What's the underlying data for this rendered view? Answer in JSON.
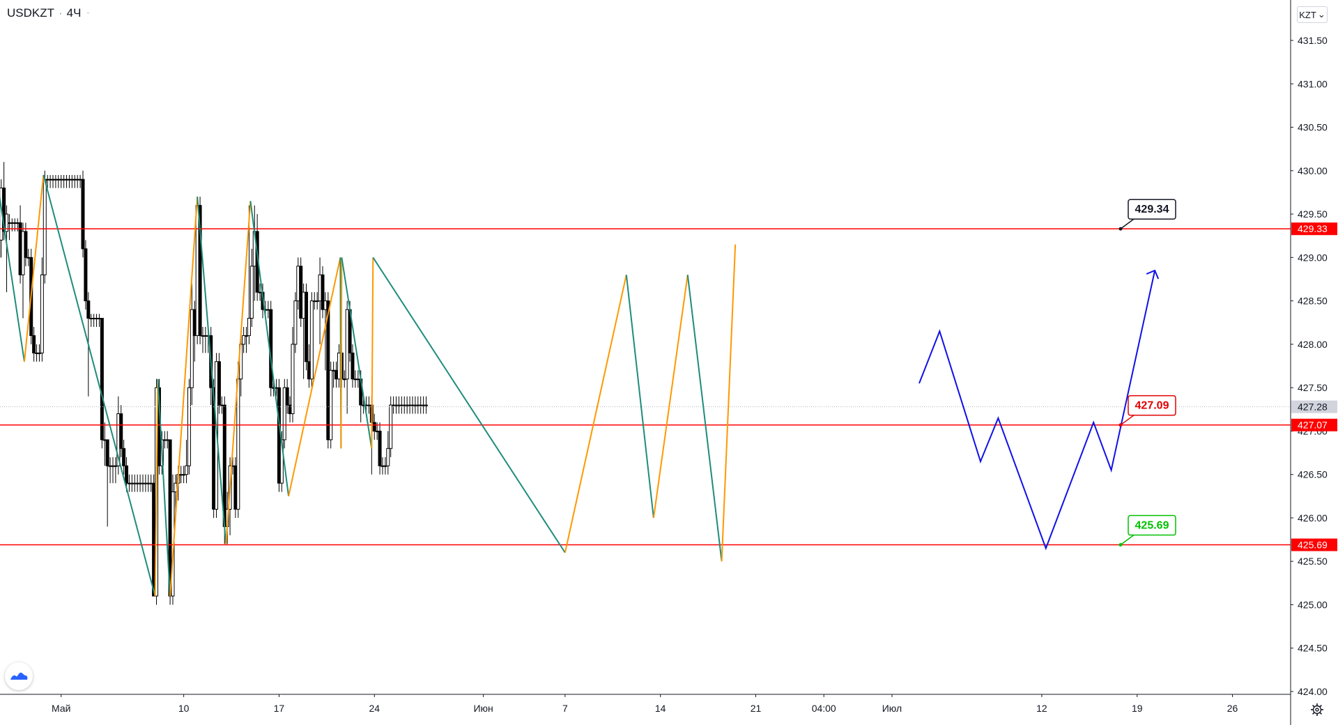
{
  "header": {
    "symbol": "USDKZT",
    "separator": "·",
    "interval": "4Ч",
    "more_glyph": "◦",
    "currency": "KZT",
    "currency_chevron": "⌄"
  },
  "icons": {
    "logo": "tradingview-logo-icon",
    "settings": "gear-icon",
    "currency_dropdown": "chevron-down-icon"
  },
  "colors": {
    "bull_candle": "#ffffff",
    "bear_candle": "#000000",
    "level_line": "#ff0000",
    "zigzag_down": "#1e8c7a",
    "zigzag_up": "#ff9800",
    "forecast": "#1010e8",
    "label_black_text": "#131722",
    "label_red_text": "#e00000",
    "label_green_text": "#00c000",
    "current_price_bg": "#d1d4dc"
  },
  "chart_data": {
    "type": "candlestick",
    "ylim": [
      424.0,
      431.75
    ],
    "y_ticks": [
      "424.00",
      "424.50",
      "425.00",
      "425.50",
      "426.00",
      "426.50",
      "427.00",
      "427.50",
      "428.00",
      "428.50",
      "429.00",
      "429.50",
      "430.00",
      "430.50",
      "431.00",
      "431.50"
    ],
    "x_ticks": [
      {
        "label": "Май",
        "x": 0
      },
      {
        "label": "10",
        "x": 9
      },
      {
        "label": "17",
        "x": 16
      },
      {
        "label": "24",
        "x": 23
      },
      {
        "label": "Июн",
        "x": 31
      },
      {
        "label": "7",
        "x": 37
      },
      {
        "label": "14",
        "x": 44
      },
      {
        "label": "21",
        "x": 51
      },
      {
        "label": "04:00",
        "x": 56
      },
      {
        "label": "Июл",
        "x": 61
      },
      {
        "label": "12",
        "x": 72
      },
      {
        "label": "19",
        "x": 79
      },
      {
        "label": "26",
        "x": 86
      }
    ],
    "x_domain_days": [
      -5,
      96
    ],
    "levels": [
      {
        "price": 429.33,
        "axis_label": "429.33",
        "callout": "429.34",
        "callout_style": "black"
      },
      {
        "price": 427.07,
        "axis_label": "427.07",
        "callout": "427.09",
        "callout_style": "red"
      },
      {
        "price": 425.69,
        "axis_label": "425.69",
        "callout": "425.69",
        "callout_style": "green"
      }
    ],
    "last_price": {
      "value": 427.28,
      "label": "427.28"
    },
    "candles": [
      [
        -5,
        429.7,
        429.3,
        429.9,
        429.2
      ],
      [
        -4.8,
        429.3,
        429.0,
        429.6,
        428.9
      ],
      [
        -4.6,
        429.0,
        429.2,
        429.3,
        428.7
      ],
      [
        -4.4,
        429.2,
        429.8,
        429.9,
        429.0
      ],
      [
        -4.2,
        429.8,
        429.3,
        430.1,
        429.2
      ],
      [
        -4,
        429.3,
        429.5,
        429.6,
        428.6
      ],
      [
        -3.8,
        429.4,
        429.4,
        429.5,
        429.2
      ],
      [
        -3.6,
        429.4,
        429.4,
        429.45,
        429.3
      ],
      [
        -3.4,
        429.4,
        429.4,
        429.45,
        429.3
      ],
      [
        -3.2,
        429.4,
        429.4,
        429.45,
        429.3
      ],
      [
        -3,
        429.4,
        428.8,
        429.6,
        428.7
      ],
      [
        -2.8,
        428.8,
        429.3,
        429.4,
        428.3
      ],
      [
        -2.6,
        429.3,
        429.0,
        429.4,
        428.9
      ],
      [
        -2.4,
        429.0,
        429.0,
        429.1,
        428.9
      ],
      [
        -2.2,
        429.0,
        428.1,
        429.1,
        428.0
      ],
      [
        -2,
        428.1,
        427.9,
        428.2,
        427.8
      ],
      [
        -1.8,
        427.9,
        427.9,
        428.0,
        427.8
      ],
      [
        -1.6,
        427.9,
        427.9,
        428.0,
        427.8
      ],
      [
        -1.4,
        427.9,
        428.8,
        429.0,
        427.8
      ],
      [
        -1.2,
        428.8,
        429.9,
        430.0,
        428.7
      ],
      [
        -1,
        429.9,
        429.9,
        429.95,
        429.8
      ],
      [
        -0.8,
        429.9,
        429.9,
        429.95,
        429.8
      ],
      [
        -0.6,
        429.9,
        429.9,
        429.95,
        429.8
      ],
      [
        -0.4,
        429.9,
        429.9,
        429.95,
        429.8
      ],
      [
        -0.2,
        429.9,
        429.9,
        429.95,
        429.8
      ],
      [
        0,
        429.9,
        429.9,
        429.95,
        429.8
      ],
      [
        0.2,
        429.9,
        429.9,
        429.95,
        429.8
      ],
      [
        0.4,
        429.9,
        429.9,
        429.95,
        429.8
      ],
      [
        0.6,
        429.9,
        429.9,
        429.95,
        429.8
      ],
      [
        0.8,
        429.9,
        429.9,
        429.95,
        429.8
      ],
      [
        1,
        429.9,
        429.9,
        429.95,
        429.8
      ],
      [
        1.2,
        429.9,
        429.9,
        429.95,
        429.8
      ],
      [
        1.4,
        429.9,
        429.9,
        429.95,
        429.8
      ],
      [
        1.6,
        429.9,
        429.1,
        430.0,
        429.0
      ],
      [
        1.8,
        429.1,
        428.5,
        429.2,
        428.4
      ],
      [
        2,
        428.5,
        428.3,
        428.6,
        427.4
      ],
      [
        2.2,
        428.3,
        428.3,
        428.35,
        428.2
      ],
      [
        2.4,
        428.3,
        428.3,
        428.35,
        428.2
      ],
      [
        2.6,
        428.3,
        428.3,
        428.35,
        428.2
      ],
      [
        2.8,
        428.3,
        428.3,
        428.35,
        428.2
      ],
      [
        3,
        428.3,
        426.9,
        428.3,
        426.8
      ],
      [
        3.2,
        426.9,
        426.9,
        427.1,
        426.6
      ],
      [
        3.4,
        426.9,
        426.6,
        426.9,
        425.9
      ],
      [
        3.6,
        426.6,
        426.6,
        426.7,
        426.4
      ],
      [
        3.8,
        426.6,
        426.6,
        426.7,
        426.4
      ],
      [
        4,
        426.6,
        426.6,
        426.7,
        426.4
      ],
      [
        4.2,
        426.6,
        427.2,
        427.4,
        426.5
      ],
      [
        4.4,
        427.2,
        426.8,
        427.3,
        426.7
      ],
      [
        4.6,
        426.8,
        426.6,
        426.9,
        426.5
      ],
      [
        4.8,
        426.6,
        426.4,
        426.7,
        426.3
      ],
      [
        5,
        426.4,
        426.4,
        426.5,
        426.3
      ],
      [
        5.2,
        426.4,
        426.4,
        426.5,
        426.3
      ],
      [
        5.4,
        426.4,
        426.4,
        426.5,
        426.3
      ],
      [
        5.6,
        426.4,
        426.4,
        426.5,
        426.3
      ],
      [
        5.8,
        426.4,
        426.4,
        426.5,
        426.3
      ],
      [
        6,
        426.4,
        426.4,
        426.5,
        426.3
      ],
      [
        6.2,
        426.4,
        426.4,
        426.5,
        426.3
      ],
      [
        6.4,
        426.4,
        426.4,
        426.5,
        426.3
      ],
      [
        6.6,
        426.4,
        426.4,
        426.5,
        426.3
      ],
      [
        6.8,
        426.4,
        425.1,
        426.5,
        425.1
      ],
      [
        7,
        425.1,
        427.5,
        427.6,
        425.0
      ],
      [
        7.2,
        427.5,
        426.6,
        427.6,
        426.5
      ],
      [
        7.4,
        426.6,
        426.9,
        427.0,
        426.5
      ],
      [
        7.6,
        426.9,
        426.9,
        427.0,
        426.8
      ],
      [
        7.8,
        426.9,
        426.9,
        427.0,
        426.8
      ],
      [
        8,
        426.9,
        425.1,
        426.9,
        425.0
      ],
      [
        8.2,
        425.1,
        426.3,
        426.5,
        425.0
      ],
      [
        8.4,
        426.3,
        426.4,
        426.5,
        426.0
      ],
      [
        8.6,
        426.4,
        426.5,
        426.6,
        426.2
      ],
      [
        8.8,
        426.5,
        426.5,
        426.6,
        426.4
      ],
      [
        9,
        426.5,
        426.5,
        426.6,
        426.4
      ],
      [
        9.2,
        426.5,
        426.6,
        426.9,
        426.4
      ],
      [
        9.4,
        426.6,
        427.5,
        427.6,
        426.5
      ],
      [
        9.6,
        427.5,
        428.4,
        428.7,
        427.3
      ],
      [
        9.8,
        428.4,
        428.1,
        428.5,
        427.8
      ],
      [
        10,
        428.1,
        429.6,
        429.7,
        428.0
      ],
      [
        10.2,
        429.6,
        428.1,
        429.7,
        428.0
      ],
      [
        10.4,
        428.1,
        428.1,
        428.2,
        427.9
      ],
      [
        10.6,
        428.1,
        428.1,
        428.2,
        427.9
      ],
      [
        10.8,
        428.1,
        428.1,
        428.2,
        427.9
      ],
      [
        11,
        428.1,
        427.5,
        428.2,
        427.3
      ],
      [
        11.2,
        427.5,
        426.1,
        427.6,
        426.0
      ],
      [
        11.4,
        426.1,
        427.8,
        427.9,
        426.0
      ],
      [
        11.6,
        427.8,
        427.3,
        427.9,
        427.2
      ],
      [
        11.8,
        427.3,
        427.3,
        427.4,
        427.2
      ],
      [
        12,
        427.3,
        425.9,
        427.4,
        425.7
      ],
      [
        12.2,
        425.9,
        426.1,
        426.3,
        425.7
      ],
      [
        12.4,
        426.1,
        426.6,
        426.7,
        425.8
      ],
      [
        12.6,
        426.6,
        426.6,
        426.7,
        426.5
      ],
      [
        12.8,
        426.6,
        426.1,
        426.7,
        426.0
      ],
      [
        13,
        426.1,
        427.6,
        427.8,
        426.0
      ],
      [
        13.2,
        427.6,
        428.0,
        428.1,
        427.4
      ],
      [
        13.4,
        428.0,
        428.1,
        428.2,
        427.9
      ],
      [
        13.6,
        428.1,
        428.1,
        428.2,
        427.9
      ],
      [
        13.8,
        428.1,
        428.3,
        429.6,
        428.0
      ],
      [
        14,
        428.3,
        428.9,
        429.1,
        428.2
      ],
      [
        14.2,
        428.9,
        429.3,
        429.6,
        428.5
      ],
      [
        14.4,
        429.3,
        428.6,
        429.5,
        428.5
      ],
      [
        14.6,
        428.6,
        428.6,
        428.7,
        428.5
      ],
      [
        14.8,
        428.6,
        428.4,
        428.7,
        428.3
      ],
      [
        15,
        428.4,
        428.4,
        428.5,
        428.3
      ],
      [
        15.2,
        428.4,
        428.4,
        428.5,
        428.3
      ],
      [
        15.4,
        428.4,
        427.5,
        428.5,
        427.4
      ],
      [
        15.6,
        427.5,
        427.5,
        427.6,
        427.4
      ],
      [
        15.8,
        427.5,
        427.5,
        427.6,
        427.4
      ],
      [
        16,
        427.5,
        426.4,
        427.6,
        426.3
      ],
      [
        16.2,
        426.4,
        426.9,
        427.0,
        426.3
      ],
      [
        16.4,
        426.9,
        427.5,
        427.6,
        426.8
      ],
      [
        16.6,
        427.5,
        427.3,
        427.6,
        427.2
      ],
      [
        16.8,
        427.3,
        427.2,
        427.4,
        427.1
      ],
      [
        17,
        427.2,
        428.0,
        428.2,
        427.1
      ],
      [
        17.2,
        428.0,
        428.5,
        428.6,
        427.9
      ],
      [
        17.4,
        428.5,
        428.9,
        429.0,
        428.4
      ],
      [
        17.6,
        428.9,
        428.3,
        429.0,
        428.2
      ],
      [
        17.8,
        428.3,
        428.6,
        428.7,
        427.6
      ],
      [
        18,
        428.6,
        427.8,
        428.7,
        427.7
      ],
      [
        18.2,
        427.8,
        427.6,
        428.0,
        427.5
      ],
      [
        18.4,
        427.6,
        428.5,
        428.6,
        427.5
      ],
      [
        18.6,
        428.5,
        428.5,
        428.6,
        428.4
      ],
      [
        18.8,
        428.5,
        428.5,
        428.6,
        428.4
      ],
      [
        19,
        428.5,
        428.8,
        429.0,
        428.0
      ],
      [
        19.2,
        428.8,
        428.4,
        428.9,
        428.3
      ],
      [
        19.4,
        428.4,
        428.5,
        428.6,
        427.7
      ],
      [
        19.6,
        428.5,
        426.9,
        428.6,
        426.8
      ],
      [
        19.8,
        426.9,
        427.7,
        427.8,
        426.8
      ],
      [
        20,
        427.7,
        427.7,
        427.8,
        427.5
      ],
      [
        20.2,
        427.7,
        427.6,
        427.8,
        427.5
      ],
      [
        20.4,
        427.6,
        427.9,
        428.0,
        427.5
      ],
      [
        20.6,
        427.9,
        427.6,
        428.0,
        427.5
      ],
      [
        20.8,
        427.6,
        427.6,
        427.7,
        427.5
      ],
      [
        21,
        427.6,
        428.4,
        428.5,
        427.2
      ],
      [
        21.2,
        428.4,
        427.9,
        428.5,
        427.8
      ],
      [
        21.4,
        427.9,
        427.6,
        428.0,
        427.5
      ],
      [
        21.6,
        427.6,
        427.6,
        427.7,
        427.5
      ],
      [
        21.8,
        427.6,
        427.6,
        427.7,
        427.5
      ],
      [
        22,
        427.6,
        427.3,
        427.7,
        427.1
      ],
      [
        22.2,
        427.3,
        427.3,
        427.4,
        427.2
      ],
      [
        22.4,
        427.3,
        427.3,
        427.4,
        427.2
      ],
      [
        22.6,
        427.3,
        427.3,
        427.4,
        427.2
      ],
      [
        22.8,
        427.3,
        427.1,
        427.4,
        426.5
      ],
      [
        23,
        427.1,
        427.0,
        427.2,
        426.9
      ],
      [
        23.2,
        427.0,
        427.0,
        427.1,
        426.9
      ],
      [
        23.4,
        427.0,
        426.6,
        427.1,
        426.5
      ],
      [
        23.6,
        426.6,
        426.6,
        426.7,
        426.5
      ],
      [
        23.8,
        426.6,
        426.6,
        426.7,
        426.5
      ],
      [
        24,
        426.6,
        426.8,
        427.0,
        426.5
      ],
      [
        24.2,
        426.8,
        427.3,
        427.4,
        426.7
      ],
      [
        24.4,
        427.3,
        427.3,
        427.4,
        427.2
      ],
      [
        24.6,
        427.3,
        427.3,
        427.4,
        427.2
      ],
      [
        24.8,
        427.3,
        427.3,
        427.4,
        427.2
      ],
      [
        25,
        427.3,
        427.3,
        427.4,
        427.2
      ],
      [
        25.2,
        427.3,
        427.3,
        427.4,
        427.2
      ],
      [
        25.4,
        427.3,
        427.3,
        427.4,
        427.2
      ],
      [
        25.6,
        427.3,
        427.3,
        427.4,
        427.2
      ],
      [
        25.8,
        427.3,
        427.3,
        427.4,
        427.2
      ],
      [
        26,
        427.3,
        427.3,
        427.4,
        427.2
      ],
      [
        26.2,
        427.3,
        427.3,
        427.4,
        427.2
      ],
      [
        26.4,
        427.3,
        427.3,
        427.4,
        427.2
      ],
      [
        26.6,
        427.3,
        427.3,
        427.4,
        427.2
      ],
      [
        26.8,
        427.3,
        427.3,
        427.4,
        427.2
      ]
    ],
    "zigzag": [
      {
        "x": -5,
        "y": 430.2
      },
      {
        "x": -2.7,
        "y": 427.8
      },
      {
        "x": -1.3,
        "y": 429.95
      },
      {
        "x": 6.9,
        "y": 425.1
      },
      {
        "x": 7.1,
        "y": 427.6
      },
      {
        "x": 8.0,
        "y": 425.1
      },
      {
        "x": 10.0,
        "y": 429.7
      },
      {
        "x": 12.1,
        "y": 425.7
      },
      {
        "x": 13.9,
        "y": 429.65
      },
      {
        "x": 16.7,
        "y": 426.25
      },
      {
        "x": 20.5,
        "y": 429.0
      },
      {
        "x": 20.55,
        "y": 426.8
      },
      {
        "x": 20.6,
        "y": 429.0
      },
      {
        "x": 22.8,
        "y": 426.8
      },
      {
        "x": 22.9,
        "y": 429.0
      },
      {
        "x": 37.0,
        "y": 425.6
      },
      {
        "x": 41.5,
        "y": 428.8
      },
      {
        "x": 43.5,
        "y": 426.0
      },
      {
        "x": 46.0,
        "y": 428.8
      },
      {
        "x": 48.5,
        "y": 425.5
      },
      {
        "x": 49.5,
        "y": 429.15
      }
    ],
    "forecast_path": [
      {
        "x": 63.0,
        "y": 427.55
      },
      {
        "x": 64.5,
        "y": 428.15
      },
      {
        "x": 67.5,
        "y": 426.65
      },
      {
        "x": 68.8,
        "y": 427.15
      },
      {
        "x": 72.3,
        "y": 425.65
      },
      {
        "x": 75.8,
        "y": 427.1
      },
      {
        "x": 77.1,
        "y": 426.55
      },
      {
        "x": 80.3,
        "y": 428.85
      }
    ]
  }
}
